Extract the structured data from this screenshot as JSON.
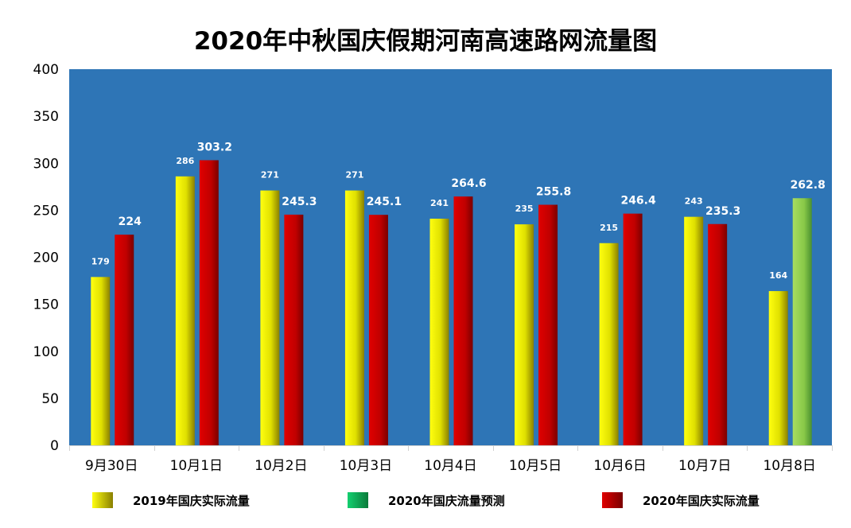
{
  "chart_data": {
    "type": "bar",
    "title": "2020年中秋国庆假期河南高速路网流量图",
    "xlabel": "",
    "ylabel": "",
    "ylim": [
      0,
      400
    ],
    "yticks": [
      "0",
      "50",
      "100",
      "150",
      "200",
      "250",
      "300",
      "350",
      "400"
    ],
    "categories": [
      "9月30日",
      "10月1日",
      "10月2日",
      "10月3日",
      "10月4日",
      "10月5日",
      "10月6日",
      "10月7日",
      "10月8日"
    ],
    "series": [
      {
        "name": "2019年国庆实际流量",
        "color": "#f2f200",
        "values": [
          179,
          286,
          271,
          271,
          241,
          235,
          215,
          243,
          164
        ],
        "labels": [
          "179",
          "286",
          "271",
          "271",
          "241",
          "235",
          "215",
          "243",
          "164"
        ]
      },
      {
        "name": "2020年国庆流量预测",
        "color": "#12c060",
        "values": [
          null,
          null,
          null,
          null,
          null,
          null,
          null,
          null,
          262.8
        ],
        "labels": [
          "",
          "",
          "",
          "",
          "",
          "",
          "",
          "",
          "262.8"
        ]
      },
      {
        "name": "2020年国庆实际流量",
        "color": "#d40000",
        "values": [
          224,
          303.2,
          245.3,
          245.1,
          264.6,
          255.8,
          246.4,
          235.3,
          null
        ],
        "labels": [
          "224",
          "303.2",
          "245.3",
          "245.1",
          "264.6",
          "255.8",
          "246.4",
          "235.3",
          ""
        ]
      }
    ],
    "plot_background": "#2e75b6",
    "legend_position": "bottom",
    "grid": false
  }
}
